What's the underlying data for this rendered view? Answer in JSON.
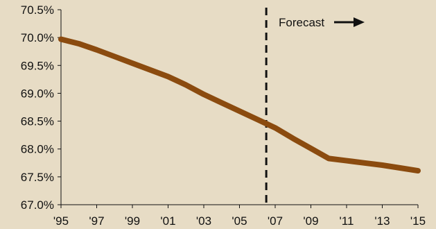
{
  "chart_data": {
    "type": "line",
    "title": "",
    "xlabel": "",
    "ylabel": "",
    "x_tick_labels": [
      "'95",
      "'97",
      "'99",
      "'01",
      "'03",
      "'05",
      "'07",
      "'09",
      "'11",
      "'13",
      "'15"
    ],
    "y_tick_labels": [
      "67.0%",
      "67.5%",
      "68.0%",
      "68.5%",
      "69.0%",
      "69.5%",
      "70.0%",
      "70.5%"
    ],
    "y_ticks": [
      67.0,
      67.5,
      68.0,
      68.5,
      69.0,
      69.5,
      70.0,
      70.5
    ],
    "xlim": [
      1995,
      2015
    ],
    "ylim": [
      67.0,
      70.5
    ],
    "grid": false,
    "series": [
      {
        "x": [
          1995,
          1996,
          1997,
          1998,
          1999,
          2000,
          2001,
          2002,
          2003,
          2004,
          2005,
          2006,
          2007,
          2008,
          2009,
          2010,
          2011,
          2012,
          2013,
          2014,
          2015
        ],
        "values": [
          69.97,
          69.89,
          69.78,
          69.66,
          69.54,
          69.42,
          69.3,
          69.15,
          68.98,
          68.83,
          68.68,
          68.53,
          68.38,
          68.19,
          68.01,
          67.83,
          67.79,
          67.75,
          67.71,
          67.66,
          67.61
        ],
        "color": "#8b4b0f"
      }
    ],
    "annotations": [
      {
        "type": "vertical-dashed-line",
        "x": 2006.5,
        "color": "#111111"
      },
      {
        "type": "label-with-arrow",
        "text": "Forecast",
        "direction": "right",
        "color": "#111111"
      }
    ]
  }
}
